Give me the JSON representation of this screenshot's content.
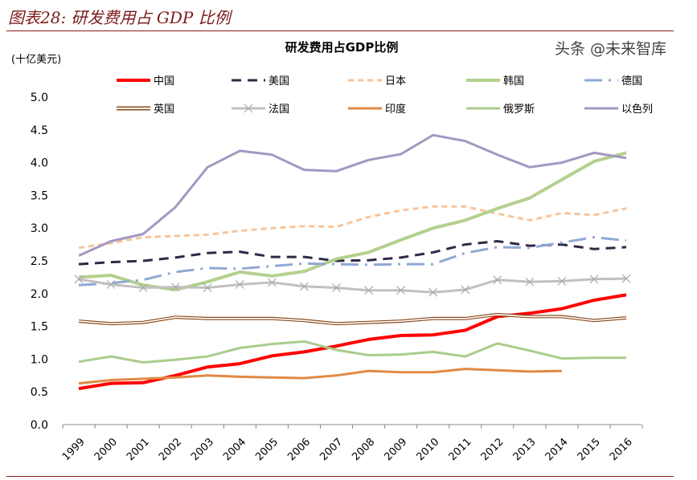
{
  "figure_title": "图表28: 研发费用占 GDP 比例",
  "watermark": "头条 @未来智库",
  "chart_data": {
    "type": "line",
    "title": "研发费用占GDP比例",
    "ylabel": "(十亿美元)",
    "xlabel": "",
    "ylim": [
      0,
      5.0
    ],
    "yticks": [
      "0.0",
      "0.5",
      "1.0",
      "1.5",
      "2.0",
      "2.5",
      "3.0",
      "3.5",
      "4.0",
      "4.5",
      "5.0"
    ],
    "grid": false,
    "legend_placement": "top",
    "x": [
      "1999",
      "2000",
      "2001",
      "2002",
      "2003",
      "2004",
      "2005",
      "2006",
      "2007",
      "2008",
      "2009",
      "2010",
      "2011",
      "2012",
      "2013",
      "2014",
      "2015",
      "2016"
    ],
    "series": [
      {
        "name": "中国",
        "color": "#ff0000",
        "style": "solid-thick",
        "values": [
          0.55,
          0.63,
          0.64,
          0.75,
          0.88,
          0.93,
          1.05,
          1.11,
          1.2,
          1.3,
          1.36,
          1.37,
          1.44,
          1.65,
          1.7,
          1.77,
          1.9,
          1.98
        ]
      },
      {
        "name": "美国",
        "color": "#2e2a45",
        "style": "dash",
        "values": [
          2.45,
          2.48,
          2.5,
          2.55,
          2.62,
          2.64,
          2.56,
          2.56,
          2.5,
          2.51,
          2.55,
          2.63,
          2.75,
          2.8,
          2.73,
          2.75,
          2.68,
          2.71
        ]
      },
      {
        "name": "日本",
        "color": "#f8c49a",
        "style": "short-dash",
        "values": [
          2.7,
          2.77,
          2.86,
          2.88,
          2.9,
          2.96,
          3.0,
          3.03,
          3.02,
          3.17,
          3.27,
          3.33,
          3.33,
          3.22,
          3.12,
          3.23,
          3.2,
          3.3
        ]
      },
      {
        "name": "韩国",
        "color": "#b4d08e",
        "style": "solid-thick",
        "values": [
          2.25,
          2.28,
          2.13,
          2.06,
          2.18,
          2.33,
          2.27,
          2.34,
          2.53,
          2.63,
          2.82,
          3.0,
          3.12,
          3.3,
          3.46,
          3.74,
          4.02,
          4.15
        ]
      },
      {
        "name": "德国",
        "color": "#8ea9d4",
        "style": "dash-dot",
        "values": [
          2.13,
          2.16,
          2.21,
          2.33,
          2.39,
          2.38,
          2.42,
          2.46,
          2.45,
          2.44,
          2.45,
          2.45,
          2.62,
          2.71,
          2.7,
          2.78,
          2.86,
          2.81
        ]
      },
      {
        "name": "英国",
        "color": "#8b4a1a",
        "style": "double",
        "values": [
          1.58,
          1.54,
          1.56,
          1.64,
          1.62,
          1.62,
          1.62,
          1.59,
          1.54,
          1.56,
          1.58,
          1.62,
          1.62,
          1.68,
          1.65,
          1.65,
          1.59,
          1.63
        ]
      },
      {
        "name": "法国",
        "color": "#c0c0c0",
        "style": "solid-x-markers",
        "values": [
          2.22,
          2.14,
          2.09,
          2.1,
          2.09,
          2.14,
          2.17,
          2.11,
          2.09,
          2.05,
          2.05,
          2.02,
          2.06,
          2.21,
          2.18,
          2.19,
          2.22,
          2.23
        ]
      },
      {
        "name": "印度",
        "color": "#e08a45",
        "style": "solid",
        "values": [
          0.63,
          0.68,
          0.7,
          0.72,
          0.75,
          0.73,
          0.72,
          0.71,
          0.75,
          0.82,
          0.8,
          0.8,
          0.85,
          0.83,
          0.81,
          0.82,
          null,
          null
        ]
      },
      {
        "name": "俄罗斯",
        "color": "#a9cc8c",
        "style": "solid",
        "values": [
          0.96,
          1.04,
          0.95,
          0.99,
          1.04,
          1.17,
          1.23,
          1.27,
          1.14,
          1.06,
          1.07,
          1.11,
          1.04,
          1.24,
          1.13,
          1.01,
          1.02,
          1.02
        ]
      },
      {
        "name": "以色列",
        "color": "#a497c2",
        "style": "solid",
        "values": [
          2.58,
          2.8,
          2.91,
          3.32,
          3.93,
          4.18,
          4.12,
          3.89,
          3.87,
          4.04,
          4.13,
          4.42,
          4.33,
          4.12,
          3.93,
          4.0,
          4.15,
          4.07
        ]
      }
    ]
  }
}
